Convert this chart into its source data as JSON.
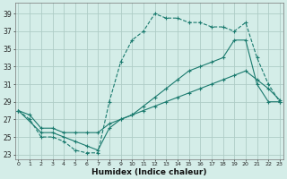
{
  "xlabel": "Humidex (Indice chaleur)",
  "background_color": "#d4ede8",
  "grid_color": "#aeccc6",
  "line_color": "#1a7a6e",
  "xlim": [
    0,
    23
  ],
  "ylim": [
    23,
    40
  ],
  "xticks": [
    0,
    1,
    2,
    3,
    4,
    5,
    6,
    7,
    8,
    9,
    10,
    11,
    12,
    13,
    14,
    15,
    16,
    17,
    18,
    19,
    20,
    21,
    22,
    23
  ],
  "yticks": [
    23,
    25,
    27,
    29,
    31,
    33,
    35,
    37,
    39
  ],
  "line1_x": [
    0,
    1,
    2,
    3,
    4,
    5,
    6,
    7,
    8,
    9,
    10,
    11,
    12,
    13,
    14,
    15,
    16,
    17,
    18,
    19,
    20,
    21,
    22,
    23
  ],
  "line1_y": [
    28,
    27,
    25,
    25,
    24.5,
    23.5,
    23.2,
    23.2,
    29,
    33.5,
    36,
    37,
    39,
    38.5,
    38.5,
    38,
    38,
    37.5,
    37.5,
    37,
    38,
    34,
    31,
    29
  ],
  "line2_x": [
    0,
    2,
    3,
    4,
    5,
    6,
    7,
    8,
    9,
    10,
    11,
    12,
    13,
    14,
    15,
    16,
    17,
    18,
    19,
    20,
    21,
    22,
    23
  ],
  "line2_y": [
    28,
    25.5,
    25.5,
    25,
    24.5,
    24,
    23.5,
    26,
    27,
    27.5,
    28.5,
    29.5,
    30.5,
    31.5,
    32.5,
    33,
    33.5,
    34,
    36,
    36,
    31,
    29,
    29
  ],
  "line3_x": [
    0,
    1,
    2,
    3,
    4,
    5,
    6,
    7,
    8,
    9,
    10,
    11,
    12,
    13,
    14,
    15,
    16,
    17,
    18,
    19,
    20,
    21,
    22,
    23
  ],
  "line3_y": [
    28,
    27.5,
    26,
    26,
    25.5,
    25.5,
    25.5,
    25.5,
    26.5,
    27,
    27.5,
    28,
    28.5,
    29,
    29.5,
    30,
    30.5,
    31,
    31.5,
    32,
    32.5,
    31.5,
    30.5,
    29.2
  ]
}
